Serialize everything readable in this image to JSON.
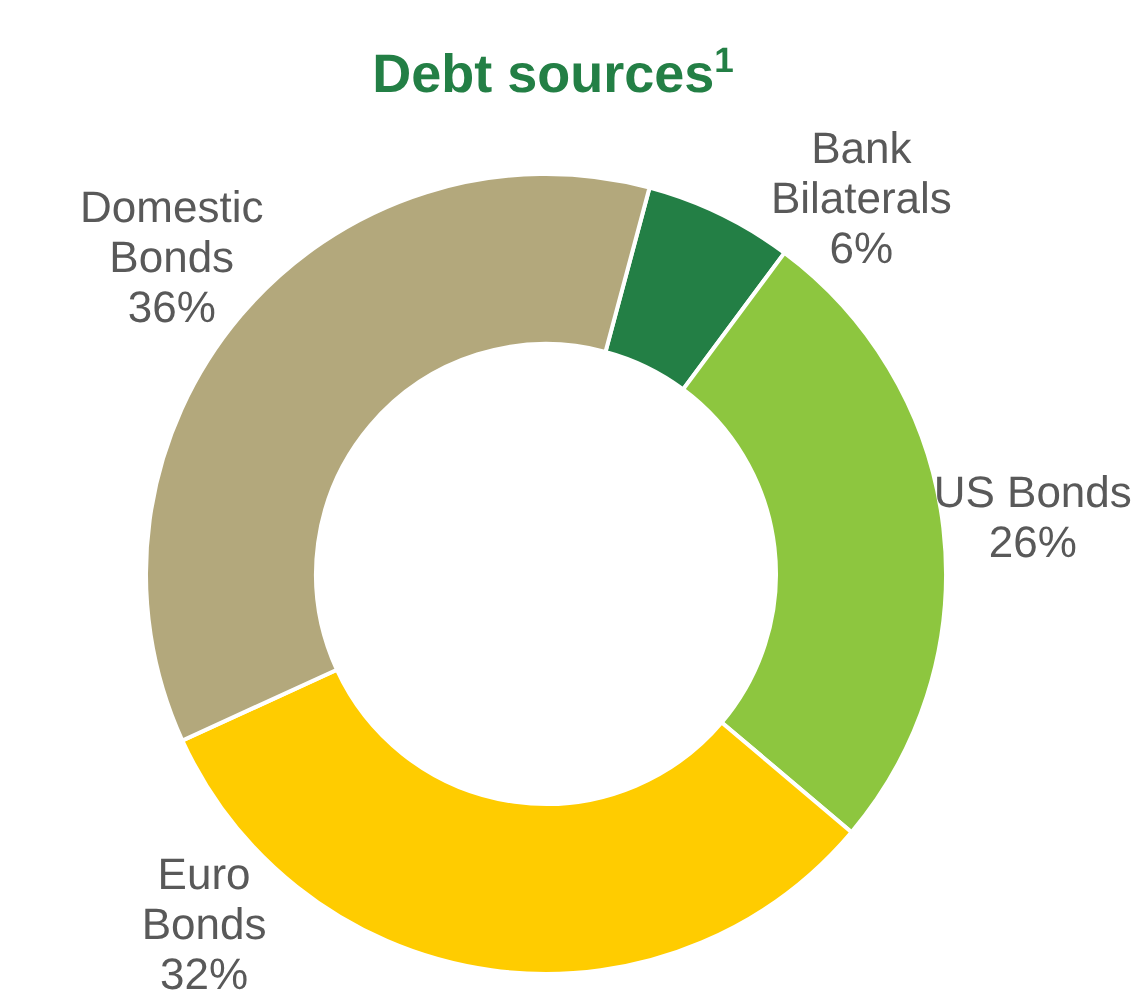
{
  "chart_data": {
    "type": "donut",
    "title": "Debt sources$^{1}$",
    "categories": [
      "Bank\nBilaterals",
      "US Bonds",
      "Euro\nBonds",
      "Domestic\nBonds"
    ],
    "values": [
      6,
      26,
      32,
      36
    ],
    "value_labels": [
      "6%",
      "26%",
      "32%",
      "36%"
    ],
    "colors": [
      "#237f45",
      "#8dc63f",
      "#ffcc00",
      "#b3a87c"
    ]
  }
}
